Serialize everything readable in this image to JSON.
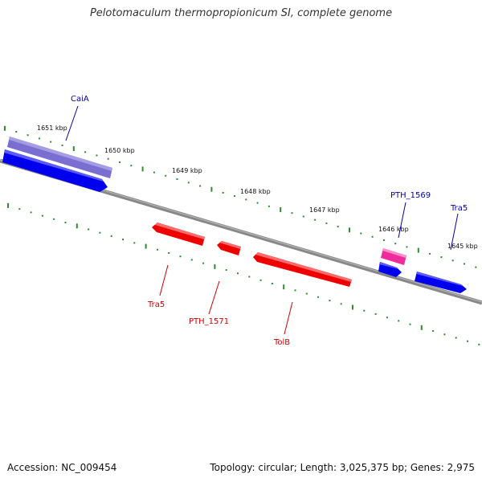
{
  "title": "Pelotomaculum thermopropionicum SI, complete genome",
  "accession": "Accession: NC_009454",
  "summary": "Topology: circular; Length: 3,025,375 bp; Genes: 2,975",
  "colors": {
    "backbone": "#888888",
    "tick": "#2e8b2e",
    "forward_gene": "#0000ee",
    "reverse_gene": "#ee0000",
    "operon": "#7a6fd0",
    "highlight": "#ee2d9a",
    "forward_label": "#0000aa",
    "reverse_label": "#cc0000"
  },
  "scale": {
    "labels": [
      "1651 kbp",
      "1650 kbp",
      "1649 kbp",
      "1648 kbp",
      "1647 kbp",
      "1646 kbp",
      "1645 kbp"
    ]
  },
  "forward_labels": [
    "CaiA",
    "PTH_1569",
    "Tra5"
  ],
  "reverse_labels": [
    "Tra5",
    "PTH_1571",
    "TolB"
  ]
}
